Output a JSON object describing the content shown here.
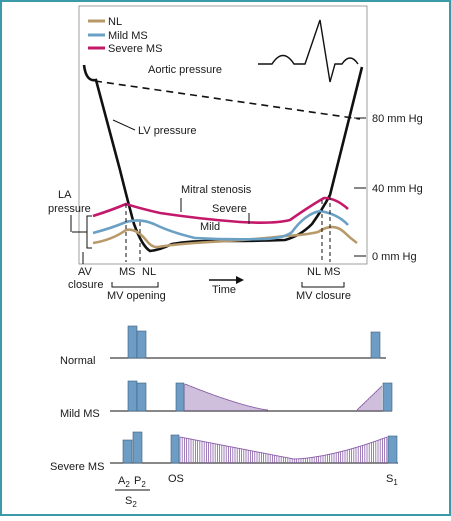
{
  "legend": {
    "items": [
      {
        "label": "NL",
        "color": "#b89a6a"
      },
      {
        "label": "Mild MS",
        "color": "#6aa0c4"
      },
      {
        "label": "Severe MS",
        "color": "#c4186a"
      }
    ]
  },
  "labels": {
    "aortic_pressure": "Aortic pressure",
    "lv_pressure": "LV pressure",
    "la_pressure_1": "LA",
    "la_pressure_2": "pressure",
    "mitral_stenosis": "Mitral stenosis",
    "severe": "Severe",
    "mild": "Mild",
    "av_closure_1": "AV",
    "av_closure_2": "closure",
    "ms_left": "MS",
    "nl_left": "NL",
    "mv_opening": "MV opening",
    "time": "Time",
    "nl_right": "NL",
    "ms_right": "MS",
    "mv_closure": "MV closure"
  },
  "scale": {
    "tick_80": "80 mm Hg",
    "tick_40": "40 mm Hg",
    "tick_0": "0 mm Hg"
  },
  "phonocardiogram": {
    "rows": [
      "Normal",
      "Mild MS",
      "Severe MS"
    ],
    "a2": "A",
    "a2_sub": "2",
    "p2": "P",
    "p2_sub": "2",
    "s2": "S",
    "s2_sub": "2",
    "os": "OS",
    "s1": "S",
    "s1_sub": "1"
  },
  "colors": {
    "border": "#3a9aa8",
    "panel": "#ffffff",
    "black": "#111111",
    "nl": "#b89a6a",
    "mild": "#6aa0c4",
    "severe": "#c4186a",
    "sound_fill": "#6d9cc4",
    "sound_stroke": "#3c5f80",
    "murmur": "#8a5fa8"
  }
}
